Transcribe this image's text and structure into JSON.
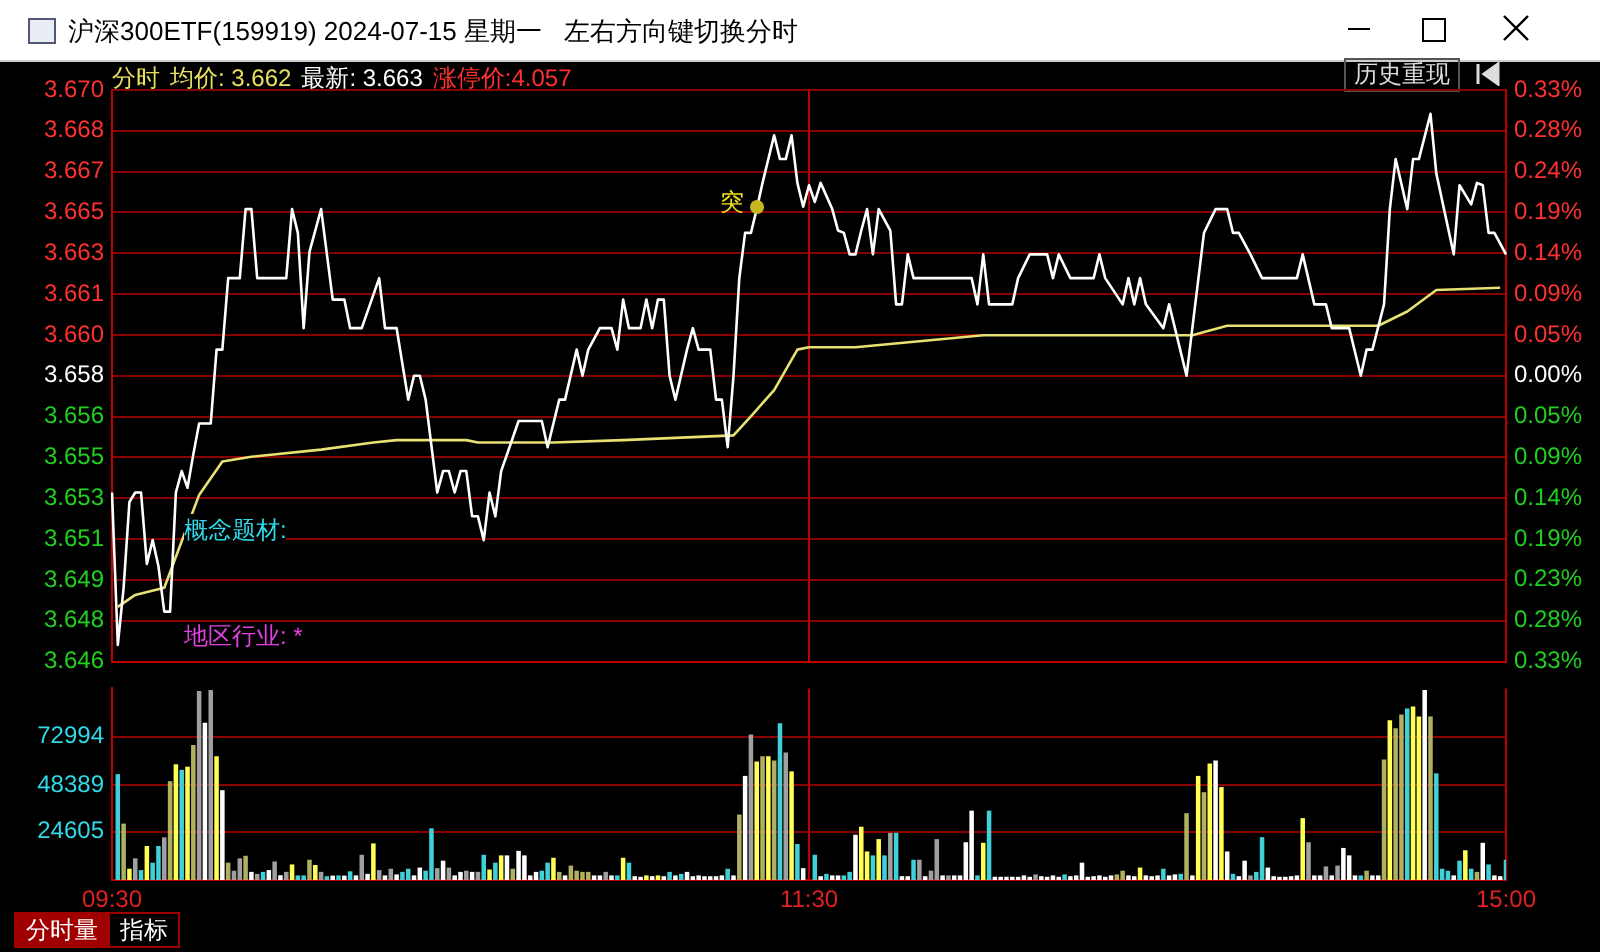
{
  "chart_data": [
    {
      "type": "line",
      "title": "沪深300ETF(159919) 2024-07-15 星期一",
      "subtitle": "左右方向键切换分时",
      "annotations": [
        "分时",
        "均价: 3.662",
        "最新: 3.663",
        "涨停价:4.057",
        "历史重现",
        "概念题材:",
        "地区行业: *",
        "突"
      ],
      "categories": [
        null,
        null,
        null,
        null,
        null,
        null,
        null,
        null,
        null,
        null,
        null,
        null,
        null,
        null,
        null,
        null,
        null,
        null,
        null,
        null,
        null,
        null,
        null,
        null,
        null,
        null,
        null,
        null,
        null,
        null,
        null,
        null,
        null,
        null,
        null,
        null,
        null,
        null,
        null,
        null,
        null,
        null,
        null,
        null,
        null,
        null,
        null,
        null,
        null,
        null,
        null,
        null,
        null,
        null,
        null,
        null,
        null,
        null,
        null,
        null,
        null,
        null,
        null,
        null,
        null,
        null,
        null,
        null,
        null,
        null,
        null,
        null,
        null,
        null,
        null,
        null,
        null,
        null,
        null,
        null,
        null,
        null,
        null,
        null,
        null,
        null,
        null,
        null,
        null,
        null,
        null,
        null,
        null,
        null,
        null,
        null,
        null,
        null,
        null,
        null,
        null,
        null,
        null,
        null,
        null,
        null,
        null,
        null,
        null,
        null,
        null,
        null,
        null,
        null,
        null,
        null,
        null,
        null,
        null,
        null,
        null,
        null,
        null,
        null,
        null,
        null,
        null,
        null,
        null,
        null,
        null,
        null,
        null,
        null,
        null,
        null,
        null,
        null,
        null,
        null,
        null,
        null,
        null,
        null,
        null,
        null,
        null,
        null,
        null,
        null,
        null,
        null,
        null,
        null,
        null,
        null,
        null,
        null,
        null,
        null,
        null,
        null,
        null,
        null,
        null,
        null,
        null,
        null,
        null,
        null,
        null,
        null,
        null,
        null,
        null,
        null,
        null,
        null,
        null,
        null,
        null,
        null,
        null,
        null,
        null,
        null,
        null,
        null,
        null,
        null,
        null,
        null,
        null,
        null,
        null,
        null,
        null,
        null,
        null,
        null,
        null,
        null,
        null,
        null,
        null,
        null,
        null,
        null,
        null,
        null,
        null,
        null,
        null,
        null,
        null,
        null,
        null,
        null,
        null,
        null,
        null,
        null,
        null,
        null,
        null,
        null,
        null,
        null,
        null,
        null,
        null,
        null,
        null,
        null,
        null,
        null,
        null,
        null,
        null,
        null,
        null
      ],
      "series": [
        {
          "color": "#ffffff",
          "values": [
            3.6531,
            3.6467,
            3.6491,
            3.6527,
            3.6531,
            3.6531,
            3.6501,
            3.6511,
            3.65,
            3.6481,
            3.6481,
            3.6531,
            3.654,
            3.6533,
            3.6547,
            3.656,
            null,
            3.656,
            3.6591,
            3.6591,
            3.6621,
            null,
            3.6621,
            3.665,
            3.665,
            3.6621,
            null,
            null,
            null,
            null,
            3.6621,
            3.665,
            3.664,
            3.66,
            3.6632,
            null,
            3.665,
            null,
            3.6612,
            null,
            3.6612,
            3.66,
            null,
            3.66,
            null,
            null,
            3.6621,
            3.66,
            null,
            3.66,
            null,
            3.657,
            3.658,
            3.658,
            3.657,
            null,
            3.6531,
            3.654,
            3.654,
            3.6531,
            3.654,
            3.654,
            3.6521,
            3.6521,
            3.6511,
            3.6531,
            3.6521,
            3.654,
            null,
            null,
            3.6561,
            null,
            null,
            null,
            3.6561,
            3.655,
            null,
            3.657,
            3.657,
            null,
            3.6591,
            3.658,
            3.6591,
            null,
            3.66,
            null,
            3.66,
            3.6591,
            3.6612,
            3.66,
            null,
            3.66,
            3.6612,
            3.66,
            3.6612,
            3.6612,
            3.658,
            3.657,
            null,
            3.6591,
            3.66,
            3.6591,
            null,
            3.6591,
            3.657,
            3.657,
            3.655,
            3.658,
            3.6621,
            3.664,
            3.664,
            3.665,
            3.6661,
            null,
            3.6681,
            3.6671,
            3.6671,
            3.6681,
            3.6661,
            3.6651,
            3.666,
            3.6653,
            3.6661,
            null,
            3.665,
            3.6641,
            3.664,
            3.6631,
            3.6631,
            3.6641,
            3.665,
            3.6631,
            3.665,
            null,
            3.6641,
            3.661,
            3.661,
            3.6631,
            3.6621,
            null,
            null,
            null,
            null,
            null,
            null,
            null,
            null,
            null,
            3.6621,
            3.661,
            3.6631,
            3.661,
            null,
            null,
            null,
            3.661,
            3.6621,
            null,
            3.6631,
            null,
            null,
            3.6631,
            3.6621,
            3.6631,
            null,
            3.6621,
            null,
            null,
            null,
            3.6621,
            3.6631,
            3.6621,
            null,
            null,
            3.661,
            3.6621,
            3.661,
            3.6621,
            3.661,
            null,
            null,
            3.66,
            3.661,
            3.66,
            null,
            3.658,
            3.66,
            null,
            3.664,
            null,
            3.665,
            null,
            3.665,
            3.664,
            3.664,
            null,
            3.6631,
            null,
            3.6621,
            null,
            null,
            null,
            null,
            null,
            3.6621,
            3.6631,
            null,
            3.661,
            null,
            3.661,
            3.66,
            null,
            null,
            3.66,
            null,
            3.658,
            3.6591,
            3.6591,
            null,
            3.661,
            3.665,
            3.6671,
            null,
            3.665,
            3.6671,
            3.6671,
            null,
            3.669,
            3.6665,
            null,
            null,
            3.6631,
            3.666,
            null,
            3.6652,
            3.6661,
            3.666,
            3.664,
            3.664,
            null,
            3.6631
          ]
        },
        {
          "color": "#e8e070",
          "values": [
            null,
            3.6483,
            null,
            null,
            3.6488,
            null,
            null,
            null,
            null,
            3.6491,
            null,
            null,
            null,
            null,
            null,
            3.653,
            null,
            null,
            null,
            3.6544,
            null,
            null,
            null,
            null,
            3.6546,
            null,
            null,
            null,
            null,
            null,
            null,
            null,
            null,
            null,
            null,
            null,
            3.6549,
            null,
            null,
            null,
            null,
            null,
            null,
            null,
            null,
            3.6552,
            null,
            null,
            null,
            3.6553,
            null,
            null,
            null,
            null,
            null,
            null,
            null,
            null,
            null,
            null,
            null,
            3.6553,
            null,
            3.6552,
            null,
            null,
            null,
            null,
            null,
            null,
            null,
            null,
            null,
            null,
            null,
            null,
            3.6552,
            null,
            null,
            null,
            null,
            null,
            null,
            null,
            null,
            null,
            null,
            null,
            3.6553,
            null,
            null,
            null,
            null,
            null,
            null,
            null,
            null,
            null,
            null,
            null,
            null,
            null,
            null,
            null,
            null,
            null,
            null,
            3.6555,
            null,
            null,
            3.6563,
            null,
            null,
            null,
            3.6574,
            null,
            null,
            null,
            3.6591,
            null,
            3.6592,
            null,
            null,
            null,
            null,
            null,
            null,
            null,
            3.6592,
            null,
            null,
            null,
            null,
            null,
            null,
            null,
            null,
            null,
            null,
            null,
            null,
            null,
            null,
            null,
            null,
            null,
            null,
            null,
            null,
            null,
            3.6597,
            null,
            null,
            null,
            null,
            null,
            null,
            null,
            null,
            null,
            null,
            null,
            null,
            null,
            null,
            null,
            null,
            null,
            null,
            null,
            null,
            null,
            null,
            null,
            null,
            null,
            null,
            null,
            null,
            null,
            3.6597,
            null,
            null,
            null,
            null,
            null,
            3.6597,
            null,
            null,
            null,
            null,
            null,
            3.6601,
            null,
            null,
            null,
            null,
            null,
            null,
            null,
            null,
            null,
            null,
            null,
            null,
            null,
            null,
            null,
            null,
            3.6601,
            null,
            null,
            null,
            null,
            null,
            null,
            null,
            null,
            3.6601,
            null,
            null,
            null,
            null,
            3.6607,
            null,
            null,
            null,
            null,
            3.6616,
            null,
            null,
            null,
            null,
            null,
            null,
            null,
            null,
            null,
            null,
            3.6617,
            null
          ]
        }
      ],
      "ylim": [
        3.646,
        3.67
      ],
      "yticks": [
        {
          "value": 3.646,
          "label": "3.646"
        },
        {
          "value": 3.64771,
          "label": "3.648"
        },
        {
          "value": 3.64943,
          "label": "3.649"
        },
        {
          "value": 3.65114,
          "label": "3.651"
        },
        {
          "value": 3.65286,
          "label": "3.653"
        },
        {
          "value": 3.65457,
          "label": "3.655"
        },
        {
          "value": 3.65629,
          "label": "3.656"
        },
        {
          "value": 3.658,
          "label": "3.658"
        },
        {
          "value": 3.65971,
          "label": "3.660"
        },
        {
          "value": 3.66143,
          "label": "3.661"
        },
        {
          "value": 3.66314,
          "label": "3.663"
        },
        {
          "value": 3.66486,
          "label": "3.665"
        },
        {
          "value": 3.66657,
          "label": "3.667"
        },
        {
          "value": 3.66829,
          "label": "3.668"
        },
        {
          "value": 3.67,
          "label": "3.670"
        }
      ],
      "y2lim": [
        -0.33,
        0.33
      ],
      "y2ticks": [
        {
          "value": -0.33,
          "label": "0.33%"
        },
        {
          "value": -0.2829,
          "label": "0.28%"
        },
        {
          "value": -0.235,
          "label": "0.23%"
        },
        {
          "value": -0.1886,
          "label": "0.19%"
        },
        {
          "value": -0.1414,
          "label": "0.14%"
        },
        {
          "value": -0.0943,
          "label": "0.09%"
        },
        {
          "value": -0.0471,
          "label": "0.05%"
        },
        {
          "value": 0,
          "label": "0.00%"
        },
        {
          "value": 0.0471,
          "label": "0.05%"
        },
        {
          "value": 0.0943,
          "label": "0.09%"
        },
        {
          "value": 0.1414,
          "label": "0.14%"
        },
        {
          "value": 0.1886,
          "label": "0.19%"
        },
        {
          "value": 0.2357,
          "label": "0.24%"
        },
        {
          "value": 0.2829,
          "label": "0.28%"
        },
        {
          "value": 0.33,
          "label": "0.33%"
        }
      ],
      "grid": true,
      "marker": "none",
      "line_style": "solid",
      "tick_labels": "y"
    },
    {
      "type": "bar",
      "annotations": [
        "分时量",
        "指标"
      ],
      "categories": [
        "09:30",
        null,
        null,
        null,
        null,
        null,
        null,
        null,
        null,
        null,
        null,
        null,
        null,
        null,
        null,
        null,
        null,
        null,
        null,
        null,
        null,
        null,
        null,
        null,
        null,
        null,
        null,
        null,
        null,
        null,
        null,
        null,
        null,
        null,
        null,
        null,
        null,
        null,
        null,
        null,
        null,
        null,
        null,
        null,
        null,
        null,
        null,
        null,
        null,
        null,
        null,
        null,
        null,
        null,
        null,
        null,
        null,
        null,
        null,
        null,
        null,
        null,
        null,
        null,
        null,
        null,
        null,
        null,
        null,
        null,
        null,
        null,
        null,
        null,
        null,
        null,
        null,
        null,
        null,
        null,
        null,
        null,
        null,
        null,
        null,
        null,
        null,
        null,
        null,
        null,
        null,
        null,
        null,
        null,
        null,
        null,
        null,
        null,
        null,
        null,
        null,
        null,
        null,
        null,
        null,
        null,
        null,
        null,
        null,
        null,
        null,
        null,
        null,
        null,
        null,
        null,
        null,
        null,
        null,
        null,
        "11:30",
        null,
        null,
        null,
        null,
        null,
        null,
        null,
        null,
        null,
        null,
        null,
        null,
        null,
        null,
        null,
        null,
        null,
        null,
        null,
        null,
        null,
        null,
        null,
        null,
        null,
        null,
        null,
        null,
        null,
        null,
        null,
        null,
        null,
        null,
        null,
        null,
        null,
        null,
        null,
        null,
        null,
        null,
        null,
        null,
        null,
        null,
        null,
        null,
        null,
        null,
        null,
        null,
        null,
        null,
        null,
        null,
        null,
        null,
        null,
        null,
        null,
        null,
        null,
        null,
        null,
        null,
        null,
        null,
        null,
        null,
        null,
        null,
        null,
        null,
        null,
        null,
        null,
        null,
        null,
        null,
        null,
        null,
        null,
        null,
        null,
        null,
        null,
        null,
        null,
        null,
        null,
        null,
        null,
        null,
        null,
        null,
        null,
        null,
        null,
        null,
        null,
        null,
        null,
        null,
        null,
        null,
        null,
        null,
        null,
        null,
        null,
        null,
        null,
        null,
        null,
        null,
        null,
        null,
        null,
        "15:00"
      ],
      "values": [
        null,
        53600,
        28400,
        5400,
        10700,
        4700,
        17000,
        8500,
        17000,
        21400,
        50000,
        58600,
        55800,
        57400,
        68400,
        96000,
        79800,
        96500,
        62700,
        45400,
        8500,
        4400,
        10700,
        12000,
        3800,
        2800,
        3800,
        4700,
        9100,
        2100,
        3800,
        7600,
        2000,
        2000,
        10000,
        7300,
        3800,
        1600,
        1900,
        2000,
        1900,
        4100,
        2000,
        12500,
        2800,
        18300,
        4700,
        2000,
        5400,
        2500,
        3800,
        5400,
        2000,
        6000,
        4400,
        26000,
        5700,
        9500,
        6000,
        2000,
        3800,
        4400,
        3800,
        3800,
        12500,
        5000,
        8500,
        12200,
        12200,
        5400,
        14500,
        12200,
        2000,
        3800,
        4400,
        8500,
        11000,
        3800,
        2000,
        7000,
        4400,
        3800,
        3800,
        2000,
        2000,
        3800,
        2000,
        2000,
        11000,
        8500,
        1600,
        1300,
        2000,
        1600,
        2000,
        1600,
        3800,
        2000,
        2800,
        3800,
        1600,
        2000,
        1600,
        1600,
        1600,
        2000,
        5400,
        2000,
        33000,
        52700,
        73800,
        60000,
        62700,
        62700,
        60500,
        79500,
        64600,
        55000,
        18000,
        5700,
        null,
        12500,
        1600,
        2800,
        2000,
        2000,
        2000,
        3800,
        22700,
        26800,
        14200,
        12200,
        20500,
        12200,
        23700,
        23700,
        1600,
        1600,
        10000,
        10000,
        1600,
        4400,
        20500,
        2000,
        2000,
        2000,
        2000,
        18900,
        35000,
        2000,
        18600,
        35000,
        1300,
        1300,
        1300,
        1300,
        1300,
        2000,
        1300,
        2500,
        1600,
        1300,
        2000,
        1300,
        2500,
        1600,
        2000,
        8500,
        1300,
        1600,
        2000,
        1300,
        2000,
        2500,
        4400,
        2000,
        1600,
        6000,
        2000,
        1600,
        2000,
        5400,
        2000,
        2500,
        2800,
        33700,
        2000,
        52700,
        44400,
        59000,
        60500,
        47000,
        14200,
        2800,
        1600,
        9500,
        2000,
        3800,
        21500,
        6000,
        1600,
        1300,
        1300,
        1600,
        2000,
        31200,
        18900,
        2000,
        2000,
        6600,
        2000,
        7000,
        16000,
        12200,
        2000,
        2000,
        4400,
        2000,
        2000,
        61000,
        81000,
        77000,
        84000,
        87000,
        88000,
        83000,
        96500,
        83000,
        54000,
        5400,
        4400,
        2000,
        9500,
        14800,
        5400,
        3800,
        18600,
        7600,
        2000,
        1600,
        10000
      ],
      "colors": [
        "#ffffff",
        "#40d0d8",
        "#b0b060",
        "#ffff55",
        "#a0a0a0",
        "#40d0d8",
        "#ffff55",
        "#40d0d8",
        "#40d0d8",
        "#a0a0a0",
        "#b0b060",
        "#ffff55",
        "#40d0d8",
        "#ffff55",
        "#b0b060",
        "#a0a0a0",
        "#ffffff",
        "#a0a0a0",
        "#ffff55",
        "#ffffff",
        "#b0b060",
        "#a0a0a0",
        "#a0a0a0",
        "#b0b060",
        "#ffffff",
        "#a0a0a0",
        "#40d0d8",
        "#ffffff",
        "#a0a0a0",
        "#ffffff",
        "#a0a0a0",
        "#ffff55",
        "#40d0d8",
        "#40d0d8",
        "#b0b060",
        "#ffff55",
        "#a0a0a0",
        "#40d0d8",
        "#ffffff",
        "#40d0d8",
        "#ffffff",
        "#40d0d8",
        "#ffffff",
        "#a0a0a0",
        "#ffffff",
        "#ffff55",
        "#a0a0a0",
        "#ffffff",
        "#a0a0a0",
        "#ffffff",
        "#40d0d8",
        "#40d0d8",
        "#ffffff",
        "#ffffff",
        "#40d0d8",
        "#40d0d8",
        "#a0a0a0",
        "#ffffff",
        "#a0a0a0",
        "#ffffff",
        "#ffffff",
        "#a0a0a0",
        "#ffffff",
        "#a0a0a0",
        "#40d0d8",
        "#ffff55",
        "#40d0d8",
        "#ffff55",
        "#ffffff",
        "#b0b060",
        "#ffffff",
        "#ffffff",
        "#ffffff",
        "#ffffff",
        "#40d0d8",
        "#40d0d8",
        "#ffff55",
        "#b0b060",
        "#ffffff",
        "#b0b060",
        "#b0b060",
        "#b0b060",
        "#b0b060",
        "#ffffff",
        "#ffffff",
        "#a0a0a0",
        "#ffffff",
        "#40d0d8",
        "#ffff55",
        "#40d0d8",
        "#ffffff",
        "#ffffff",
        "#ffff55",
        "#ffffff",
        "#ffff55",
        "#ffffff",
        "#40d0d8",
        "#ffffff",
        "#40d0d8",
        "#ffffff",
        "#ffffff",
        "#ffffff",
        "#ffffff",
        "#ffffff",
        "#ffffff",
        "#ffffff",
        "#40d0d8",
        "#ffffff",
        "#b0b060",
        "#ffffff",
        "#a0a0a0",
        "#ffff55",
        "#b0b060",
        "#ffff55",
        "#b0b060",
        "#40d0d8",
        "#a0a0a0",
        "#ffff55",
        "#40d0d8",
        "#ffffff",
        "#ffffff",
        "#40d0d8",
        "#ffffff",
        "#40d0d8",
        "#ffffff",
        "#ffffff",
        "#40d0d8",
        "#40d0d8",
        "#ffffff",
        "#ffff55",
        "#ffff55",
        "#40d0d8",
        "#ffff55",
        "#40d0d8",
        "#a0a0a0",
        "#40d0d8",
        "#ffffff",
        "#ffffff",
        "#40d0d8",
        "#a0a0a0",
        "#ffffff",
        "#a0a0a0",
        "#a0a0a0",
        "#ffffff",
        "#a0a0a0",
        "#ffffff",
        "#ffffff",
        "#ffffff",
        "#ffffff",
        "#40d0d8",
        "#ffff55",
        "#40d0d8",
        "#ffffff",
        "#ffffff",
        "#ffffff",
        "#ffffff",
        "#ffffff",
        "#ffffff",
        "#ffffff",
        "#a0a0a0",
        "#ffffff",
        "#ffffff",
        "#ffffff",
        "#ffffff",
        "#40d0d8",
        "#ffffff",
        "#ffffff",
        "#ffffff",
        "#ffffff",
        "#ffffff",
        "#ffffff",
        "#ffffff",
        "#ffffff",
        "#b0b060",
        "#b0b060",
        "#ffffff",
        "#ffffff",
        "#ffff55",
        "#ffffff",
        "#ffffff",
        "#ffffff",
        "#40d0d8",
        "#ffffff",
        "#ffffff",
        "#40d0d8",
        "#b0b060",
        "#ffffff",
        "#ffff55",
        "#b0b060",
        "#ffff55",
        "#ffffff",
        "#ffff55",
        "#ffffff",
        "#40d0d8",
        "#ffffff",
        "#ffffff",
        "#a0a0a0",
        "#40d0d8",
        "#40d0d8",
        "#ffffff",
        "#ffffff",
        "#ffffff",
        "#ffffff",
        "#ffffff",
        "#ffffff",
        "#ffff55",
        "#a0a0a0",
        "#ffffff",
        "#ffffff",
        "#a0a0a0",
        "#ffffff",
        "#a0a0a0",
        "#ffffff",
        "#ffffff",
        "#ffffff",
        "#40d0d8",
        "#b0b060",
        "#ffffff",
        "#ffffff",
        "#b0b060",
        "#ffff55",
        "#b0b060",
        "#b0b060",
        "#40d0d8",
        "#ffff55",
        "#ffff55",
        "#ffffff",
        "#b0b060",
        "#40d0d8",
        "#40d0d8",
        "#40d0d8",
        "#ffffff",
        "#40d0d8",
        "#ffff55",
        "#40d0d8",
        "#b0b060",
        "#ffffff",
        "#40d0d8",
        "#ffffff",
        "#ffffff",
        "#40d0d8"
      ],
      "ylim": [
        0,
        97600
      ],
      "yticks": [
        24605,
        48389,
        72994
      ],
      "grid": true
    }
  ]
}
